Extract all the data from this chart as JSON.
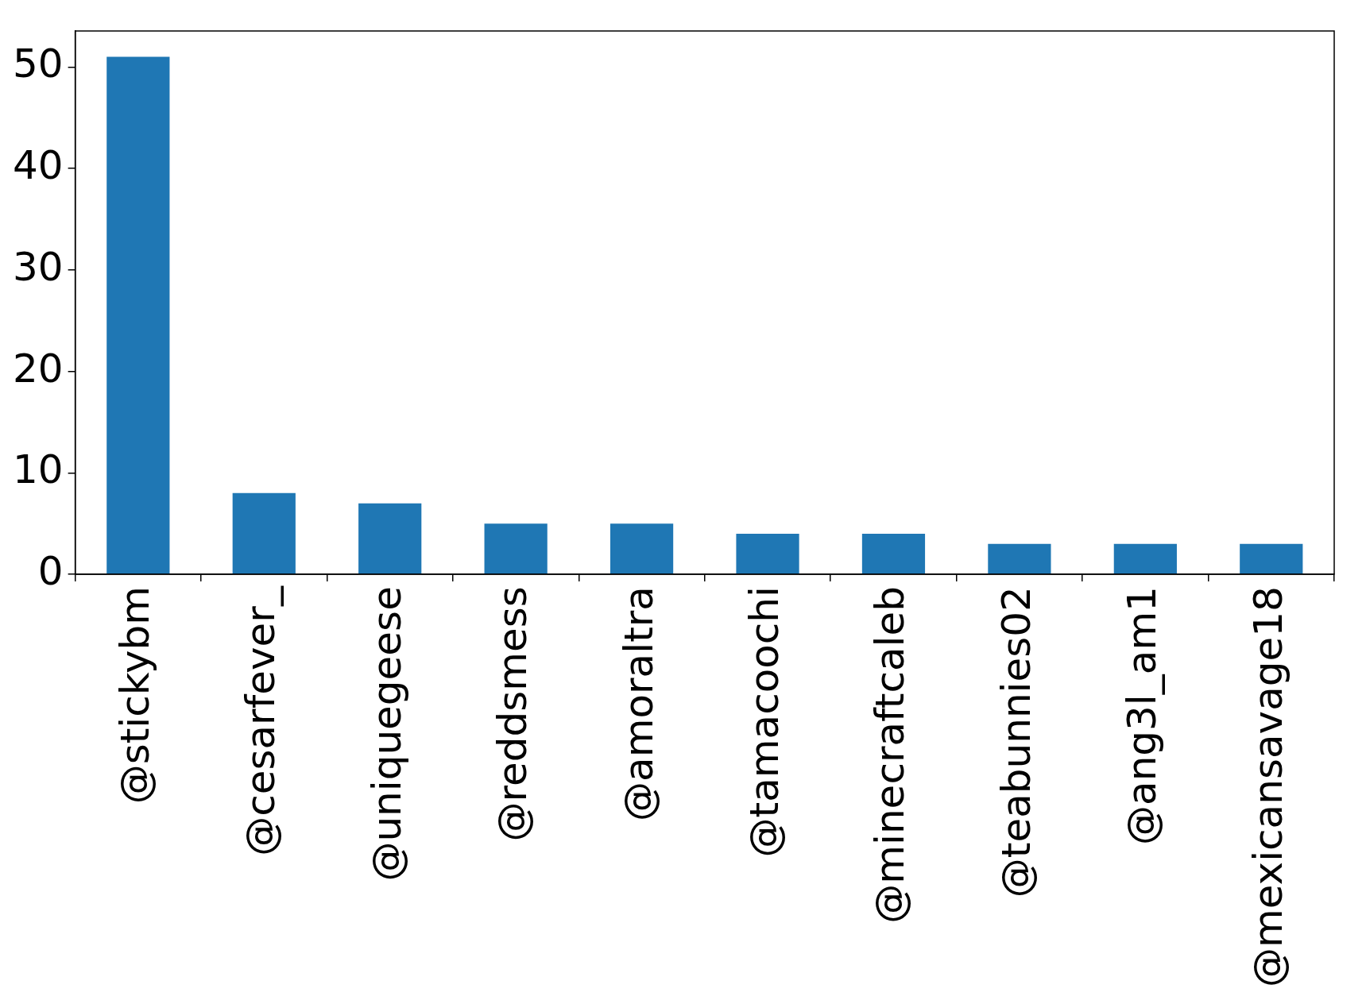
{
  "chart_data": {
    "type": "bar",
    "categories": [
      "@stickybm",
      "@cesarfever_",
      "@uniquegeese",
      "@reddsmess",
      "@amoraltra",
      "@tamacoochi",
      "@minecraftcaleb",
      "@teabunnies02",
      "@ang3l_am1",
      "@mexicansavage18"
    ],
    "values": [
      51,
      8,
      7,
      5,
      5,
      4,
      4,
      3,
      3,
      3
    ],
    "color": "#1f77b4",
    "ylim": [
      0,
      53.55
    ],
    "yticks": [
      0,
      10,
      20,
      30,
      40,
      50
    ],
    "grid": false,
    "legend": false
  }
}
